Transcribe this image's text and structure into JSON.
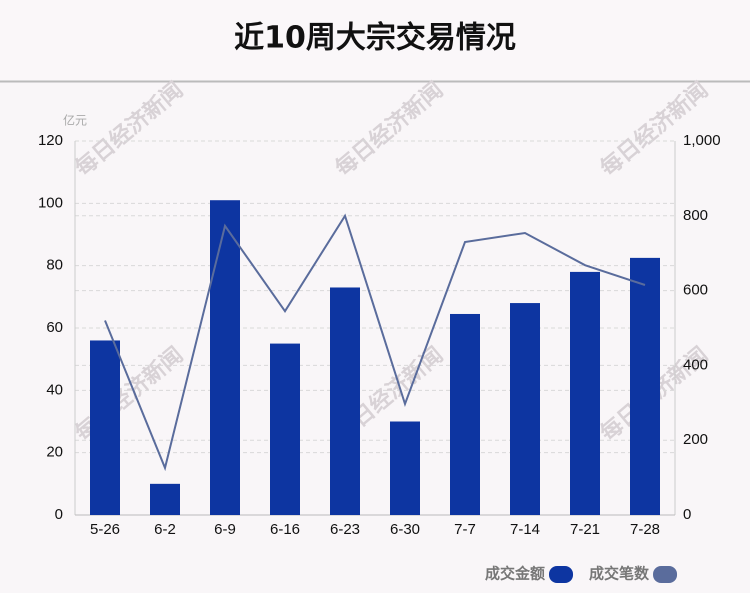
{
  "chart_data": {
    "type": "bar-line",
    "title": "近10周大宗交易情况",
    "y_unit": "亿元",
    "watermark": "每日经济新闻",
    "categories": [
      "5-26",
      "6-2",
      "6-9",
      "6-16",
      "6-23",
      "6-30",
      "7-7",
      "7-14",
      "7-21",
      "7-28"
    ],
    "series": [
      {
        "name": "成交金额",
        "type": "bar",
        "color": "#0d35a1",
        "values": [
          56,
          10,
          101,
          55,
          73,
          30,
          64.5,
          68,
          78,
          82.5
        ]
      },
      {
        "name": "成交笔数",
        "type": "line",
        "axis": "y2",
        "color": "#5a6c9c",
        "values": [
          520,
          126,
          773,
          545,
          800,
          297,
          730,
          754,
          668,
          615
        ]
      }
    ],
    "ylim": [
      0,
      120
    ],
    "yticks": [
      0,
      20,
      40,
      60,
      80,
      100,
      120
    ],
    "y2lim": [
      0,
      1000
    ],
    "y2ticks": [
      0,
      200,
      400,
      600,
      800,
      {
        "value": 1000,
        "label": "1,000"
      }
    ],
    "grid": true,
    "legend": "bottom-right"
  }
}
